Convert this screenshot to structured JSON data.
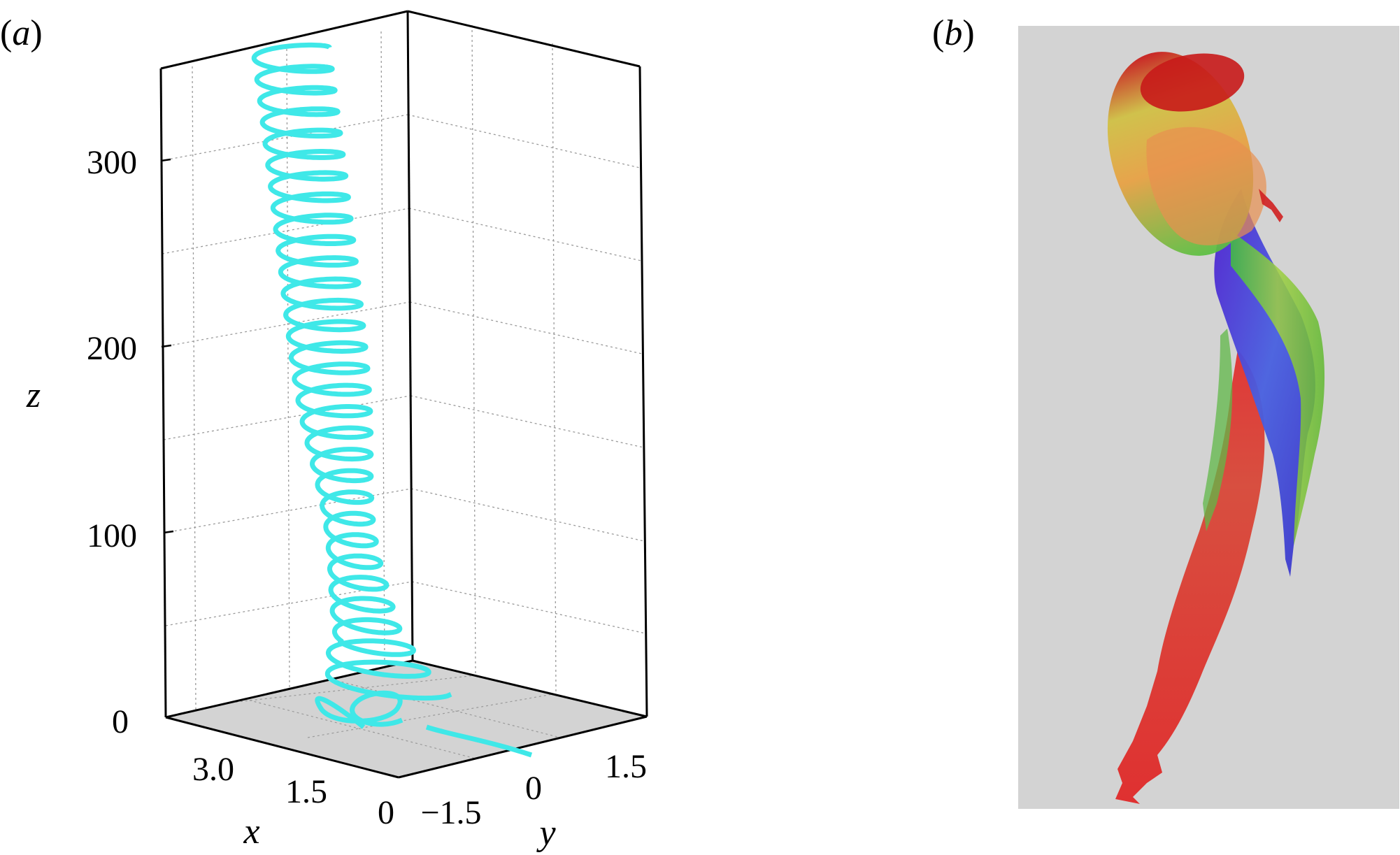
{
  "panels": {
    "a": {
      "label": "(a)",
      "label_letter": "a",
      "axis_labels": {
        "x": "x",
        "y": "y",
        "z": "z"
      },
      "z_ticks": [
        "0",
        "100",
        "200",
        "300"
      ],
      "x_ticks": [
        "3.0",
        "1.5",
        "0"
      ],
      "y_ticks": [
        "−1.5",
        "0",
        "1.5"
      ],
      "colors": {
        "trajectory": "#3fe8e8",
        "floor": "#d3d3d3",
        "grid": "#9a9a9a",
        "frame": "#000000"
      }
    },
    "b": {
      "label": "(b)",
      "label_letter": "b",
      "colors": {
        "background": "#d3d3d3"
      }
    }
  },
  "chart_data": {
    "type": "line",
    "subtype": "3d-trajectory",
    "xlabel": "x",
    "ylabel": "y",
    "zlabel": "z",
    "xlim": [
      0,
      3.6
    ],
    "ylim": [
      -2.5,
      2.5
    ],
    "zlim": [
      0,
      360
    ],
    "z_ticks": [
      0,
      100,
      200,
      300
    ],
    "x_ticks": [
      3.0,
      1.5,
      0
    ],
    "y_ticks": [
      -1.5,
      0,
      1.5
    ],
    "grid": true,
    "series": [
      {
        "description": "helical path rising from floor, approx 30 turns",
        "z_start": 0,
        "z_end": 365,
        "turns": 30
      }
    ]
  }
}
